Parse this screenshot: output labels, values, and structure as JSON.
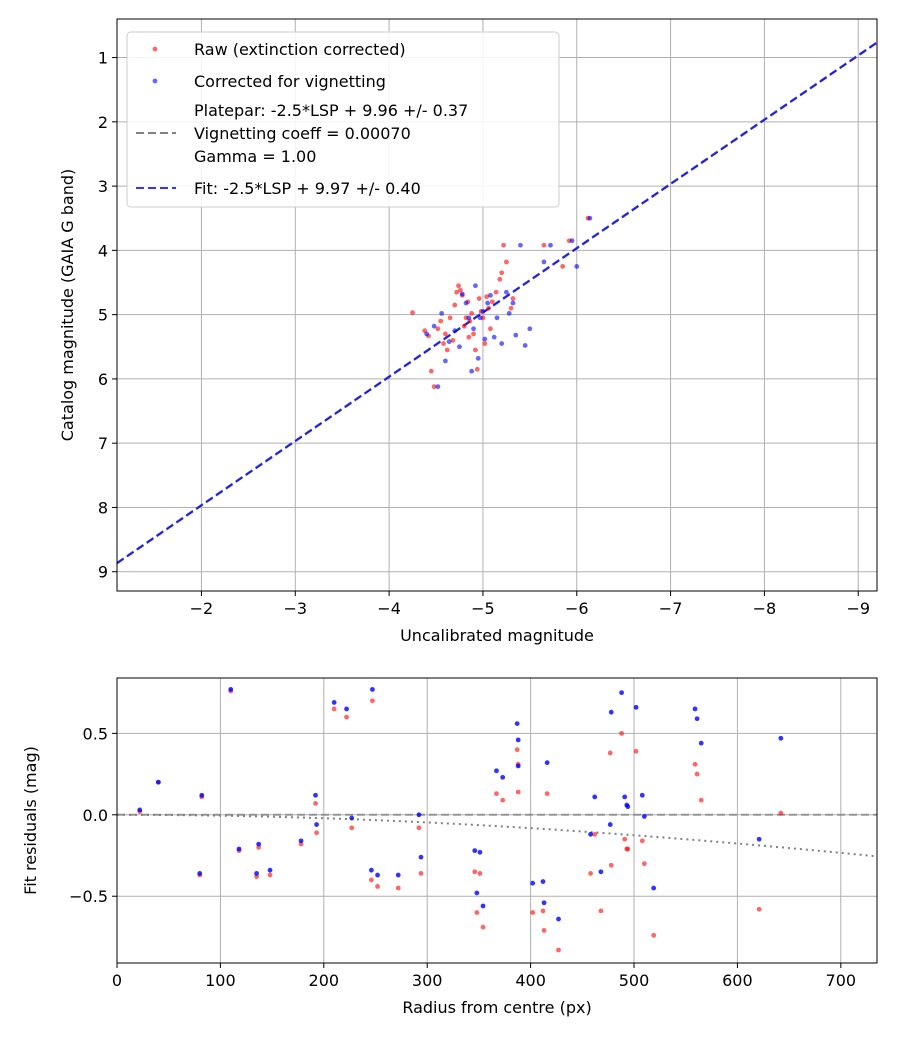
{
  "chart_data": [
    {
      "type": "scatter",
      "xlabel": "Uncalibrated magnitude",
      "ylabel": "Catalog magnitude (GAIA G band)",
      "xlim": [
        -1.1,
        -9.2
      ],
      "ylim": [
        9.3,
        0.4
      ],
      "x_inverted": true,
      "y_inverted": true,
      "grid": true,
      "xticks": [
        -2,
        -3,
        -4,
        -5,
        -6,
        -7,
        -8,
        -9
      ],
      "xtick_labels": [
        "−2",
        "−3",
        "−4",
        "−5",
        "−6",
        "−7",
        "−8",
        "−9"
      ],
      "yticks": [
        1,
        2,
        3,
        4,
        5,
        6,
        7,
        8,
        9
      ],
      "ytick_labels": [
        "1",
        "2",
        "3",
        "4",
        "5",
        "6",
        "7",
        "8",
        "9"
      ],
      "legend_position": "top-left",
      "legend": [
        {
          "label": "Raw (extinction corrected)",
          "marker": "dot",
          "color": "#ff0000"
        },
        {
          "label": "Corrected for vignetting",
          "marker": "dot",
          "color": "#0000ff"
        },
        {
          "label": "Platepar: -2.5*LSP + 9.96 +/- 0.37",
          "marker": "dash",
          "color": "#808080"
        },
        {
          "label": "Vignetting coeff = 0.00070",
          "marker": "none",
          "color": "#000000"
        },
        {
          "label": "Gamma = 1.00",
          "marker": "none",
          "color": "#000000"
        },
        {
          "label": "Fit: -2.5*LSP + 9.97 +/- 0.40",
          "marker": "dash",
          "color": "#0000ff"
        }
      ],
      "lines": [
        {
          "name": "Platepar",
          "slope": 1,
          "intercept": 9.96,
          "color": "#808080",
          "style": "dashed"
        },
        {
          "name": "Fit",
          "slope": 1,
          "intercept": 9.97,
          "color": "#0000ff",
          "style": "dashed"
        }
      ],
      "series": [
        {
          "name": "Raw (extinction corrected)",
          "color": "#ff0000",
          "points": [
            [
              -4.25,
              4.97
            ],
            [
              -4.38,
              5.25
            ],
            [
              -4.42,
              5.33
            ],
            [
              -4.45,
              5.88
            ],
            [
              -4.48,
              6.12
            ],
            [
              -4.52,
              5.22
            ],
            [
              -4.55,
              5.1
            ],
            [
              -4.58,
              5.45
            ],
            [
              -4.6,
              5.3
            ],
            [
              -4.62,
              5.55
            ],
            [
              -4.65,
              5.05
            ],
            [
              -4.68,
              5.4
            ],
            [
              -4.7,
              4.85
            ],
            [
              -4.72,
              4.65
            ],
            [
              -4.74,
              4.55
            ],
            [
              -4.76,
              4.62
            ],
            [
              -4.78,
              4.7
            ],
            [
              -4.8,
              5.18
            ],
            [
              -4.82,
              5.05
            ],
            [
              -4.84,
              4.8
            ],
            [
              -4.85,
              5.35
            ],
            [
              -4.86,
              5.1
            ],
            [
              -4.88,
              4.98
            ],
            [
              -4.9,
              5.3
            ],
            [
              -4.92,
              5.55
            ],
            [
              -4.94,
              5.85
            ],
            [
              -4.96,
              4.75
            ],
            [
              -4.98,
              4.95
            ],
            [
              -5.0,
              5.05
            ],
            [
              -5.02,
              5.45
            ],
            [
              -5.04,
              4.72
            ],
            [
              -5.06,
              4.9
            ],
            [
              -5.08,
              5.22
            ],
            [
              -5.1,
              4.8
            ],
            [
              -5.14,
              4.65
            ],
            [
              -5.18,
              4.45
            ],
            [
              -5.2,
              4.35
            ],
            [
              -5.22,
              3.92
            ],
            [
              -5.25,
              4.18
            ],
            [
              -5.3,
              4.9
            ],
            [
              -5.32,
              4.75
            ],
            [
              -5.65,
              3.92
            ],
            [
              -5.85,
              4.25
            ],
            [
              -5.92,
              3.85
            ],
            [
              -6.12,
              3.5
            ]
          ]
        },
        {
          "name": "Corrected for vignetting",
          "color": "#0000ff",
          "points": [
            [
              -4.4,
              5.3
            ],
            [
              -4.48,
              5.18
            ],
            [
              -4.52,
              6.12
            ],
            [
              -4.56,
              4.98
            ],
            [
              -4.6,
              5.72
            ],
            [
              -4.64,
              5.42
            ],
            [
              -4.7,
              5.25
            ],
            [
              -4.75,
              5.5
            ],
            [
              -4.78,
              4.68
            ],
            [
              -4.82,
              4.82
            ],
            [
              -4.85,
              5.05
            ],
            [
              -4.88,
              5.88
            ],
            [
              -4.9,
              5.22
            ],
            [
              -4.92,
              4.55
            ],
            [
              -4.95,
              5.68
            ],
            [
              -4.97,
              5.05
            ],
            [
              -5.0,
              4.95
            ],
            [
              -5.02,
              5.38
            ],
            [
              -5.05,
              4.82
            ],
            [
              -5.08,
              4.7
            ],
            [
              -5.12,
              5.35
            ],
            [
              -5.15,
              5.05
            ],
            [
              -5.2,
              5.45
            ],
            [
              -5.25,
              4.65
            ],
            [
              -5.28,
              4.98
            ],
            [
              -5.32,
              4.82
            ],
            [
              -5.35,
              5.32
            ],
            [
              -5.4,
              3.92
            ],
            [
              -5.45,
              5.48
            ],
            [
              -5.5,
              5.22
            ],
            [
              -5.65,
              4.18
            ],
            [
              -5.72,
              3.92
            ],
            [
              -5.95,
              3.85
            ],
            [
              -6.0,
              4.25
            ],
            [
              -6.14,
              3.5
            ]
          ]
        }
      ]
    },
    {
      "type": "scatter",
      "xlabel": "Radius from centre (px)",
      "ylabel": "Fit residuals (mag)",
      "xlim": [
        0,
        735
      ],
      "ylim": [
        -0.91,
        0.84
      ],
      "grid": true,
      "xticks": [
        0,
        100,
        200,
        300,
        400,
        500,
        600,
        700
      ],
      "xtick_labels": [
        "0",
        "100",
        "200",
        "300",
        "400",
        "500",
        "600",
        "700"
      ],
      "yticks": [
        -0.5,
        0.0,
        0.5
      ],
      "ytick_labels": [
        "−0.5",
        "0.0",
        "0.5"
      ],
      "lines": [
        {
          "name": "zero",
          "type": "horizontal",
          "y": 0,
          "color": "#808080",
          "style": "dashed"
        },
        {
          "name": "vignetting",
          "type": "curve",
          "coeff": 0.0007,
          "color": "#808080",
          "style": "dotted"
        }
      ],
      "series": [
        {
          "name": "Raw (extinction corrected)",
          "color": "#ff0000",
          "points": [
            [
              22,
              0.02
            ],
            [
              40,
              0.2
            ],
            [
              80,
              -0.37
            ],
            [
              82,
              0.11
            ],
            [
              110,
              0.76
            ],
            [
              118,
              -0.22
            ],
            [
              135,
              -0.38
            ],
            [
              137,
              -0.2
            ],
            [
              148,
              -0.37
            ],
            [
              178,
              -0.18
            ],
            [
              192,
              0.07
            ],
            [
              193,
              -0.11
            ],
            [
              210,
              0.65
            ],
            [
              222,
              0.6
            ],
            [
              227,
              -0.08
            ],
            [
              246,
              -0.4
            ],
            [
              247,
              0.7
            ],
            [
              252,
              -0.44
            ],
            [
              272,
              -0.45
            ],
            [
              292,
              -0.08
            ],
            [
              294,
              -0.36
            ],
            [
              346,
              -0.35
            ],
            [
              348,
              -0.6
            ],
            [
              351,
              -0.36
            ],
            [
              354,
              -0.69
            ],
            [
              367,
              0.13
            ],
            [
              373,
              0.09
            ],
            [
              387,
              0.4
            ],
            [
              388,
              0.14
            ],
            [
              388,
              0.31
            ],
            [
              402,
              -0.6
            ],
            [
              412,
              -0.59
            ],
            [
              413,
              -0.71
            ],
            [
              416,
              0.13
            ],
            [
              427,
              -0.83
            ],
            [
              458,
              -0.36
            ],
            [
              462,
              -0.12
            ],
            [
              468,
              -0.59
            ],
            [
              477,
              0.38
            ],
            [
              478,
              -0.31
            ],
            [
              488,
              0.5
            ],
            [
              491,
              -0.15
            ],
            [
              493,
              -0.21
            ],
            [
              494,
              -0.21
            ],
            [
              502,
              0.39
            ],
            [
              508,
              -0.16
            ],
            [
              510,
              -0.3
            ],
            [
              519,
              -0.74
            ],
            [
              559,
              0.31
            ],
            [
              561,
              0.25
            ],
            [
              565,
              0.09
            ],
            [
              621,
              -0.58
            ],
            [
              642,
              0.01
            ]
          ]
        },
        {
          "name": "Corrected for vignetting",
          "color": "#0000ff",
          "points": [
            [
              22,
              0.03
            ],
            [
              40,
              0.2
            ],
            [
              80,
              -0.36
            ],
            [
              82,
              0.12
            ],
            [
              110,
              0.77
            ],
            [
              118,
              -0.21
            ],
            [
              135,
              -0.36
            ],
            [
              137,
              -0.18
            ],
            [
              148,
              -0.34
            ],
            [
              178,
              -0.16
            ],
            [
              192,
              0.12
            ],
            [
              193,
              -0.06
            ],
            [
              210,
              0.69
            ],
            [
              222,
              0.65
            ],
            [
              227,
              -0.02
            ],
            [
              246,
              -0.34
            ],
            [
              247,
              0.77
            ],
            [
              252,
              -0.37
            ],
            [
              272,
              -0.37
            ],
            [
              292,
              0.0
            ],
            [
              294,
              -0.26
            ],
            [
              346,
              -0.22
            ],
            [
              348,
              -0.48
            ],
            [
              351,
              -0.23
            ],
            [
              354,
              -0.56
            ],
            [
              367,
              0.27
            ],
            [
              373,
              0.23
            ],
            [
              387,
              0.56
            ],
            [
              388,
              0.46
            ],
            [
              388,
              0.3
            ],
            [
              402,
              -0.42
            ],
            [
              412,
              -0.41
            ],
            [
              413,
              -0.54
            ],
            [
              416,
              0.32
            ],
            [
              427,
              -0.64
            ],
            [
              458,
              -0.12
            ],
            [
              462,
              0.11
            ],
            [
              468,
              -0.35
            ],
            [
              477,
              -0.06
            ],
            [
              478,
              0.63
            ],
            [
              488,
              0.75
            ],
            [
              491,
              0.11
            ],
            [
              493,
              0.06
            ],
            [
              494,
              0.05
            ],
            [
              502,
              0.66
            ],
            [
              508,
              0.12
            ],
            [
              510,
              -0.01
            ],
            [
              519,
              -0.45
            ],
            [
              559,
              0.65
            ],
            [
              561,
              0.59
            ],
            [
              565,
              0.44
            ],
            [
              621,
              -0.15
            ],
            [
              642,
              0.47
            ]
          ]
        }
      ]
    }
  ]
}
